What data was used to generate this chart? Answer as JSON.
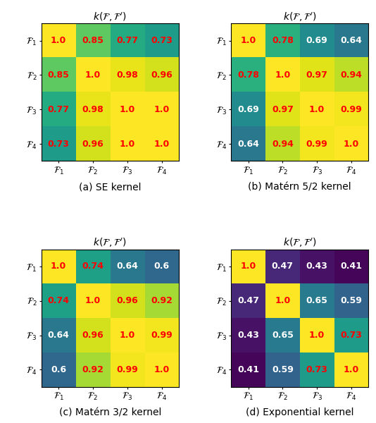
{
  "matrices": [
    [
      [
        1.0,
        0.85,
        0.77,
        0.73
      ],
      [
        0.85,
        1.0,
        0.98,
        0.96
      ],
      [
        0.77,
        0.98,
        1.0,
        1.0
      ],
      [
        0.73,
        0.96,
        1.0,
        1.0
      ]
    ],
    [
      [
        1.0,
        0.78,
        0.69,
        0.64
      ],
      [
        0.78,
        1.0,
        0.97,
        0.94
      ],
      [
        0.69,
        0.97,
        1.0,
        0.99
      ],
      [
        0.64,
        0.94,
        0.99,
        1.0
      ]
    ],
    [
      [
        1.0,
        0.74,
        0.64,
        0.6
      ],
      [
        0.74,
        1.0,
        0.96,
        0.92
      ],
      [
        0.64,
        0.96,
        1.0,
        0.99
      ],
      [
        0.6,
        0.92,
        0.99,
        1.0
      ]
    ],
    [
      [
        1.0,
        0.47,
        0.43,
        0.41
      ],
      [
        0.47,
        1.0,
        0.65,
        0.59
      ],
      [
        0.43,
        0.65,
        1.0,
        0.73
      ],
      [
        0.41,
        0.59,
        0.73,
        1.0
      ]
    ]
  ],
  "subtitles": [
    "(a) SE kernel",
    "(b) Matérn 5/2 kernel",
    "(c) Matérn 3/2 kernel",
    "(d) Exponential kernel"
  ],
  "colormap": "viridis",
  "vmin": 0.4,
  "vmax": 1.0,
  "tick_labels": [
    "$\\mathcal{F}_1$",
    "$\\mathcal{F}_2$",
    "$\\mathcal{F}_3$",
    "$\\mathcal{F}_4$"
  ],
  "title": "$k(\\mathcal{F}, \\mathcal{F}')$",
  "ylabel_labels": [
    "$\\mathcal{F}_1$",
    "$\\mathcal{F}_2$",
    "$\\mathcal{F}_3$",
    "$\\mathcal{F}_4$"
  ],
  "high_text_color": "red",
  "low_text_color": "white",
  "title_fontsize": 10,
  "tick_fontsize": 9,
  "annotation_fontsize": 9,
  "subtitle_fontsize": 10
}
